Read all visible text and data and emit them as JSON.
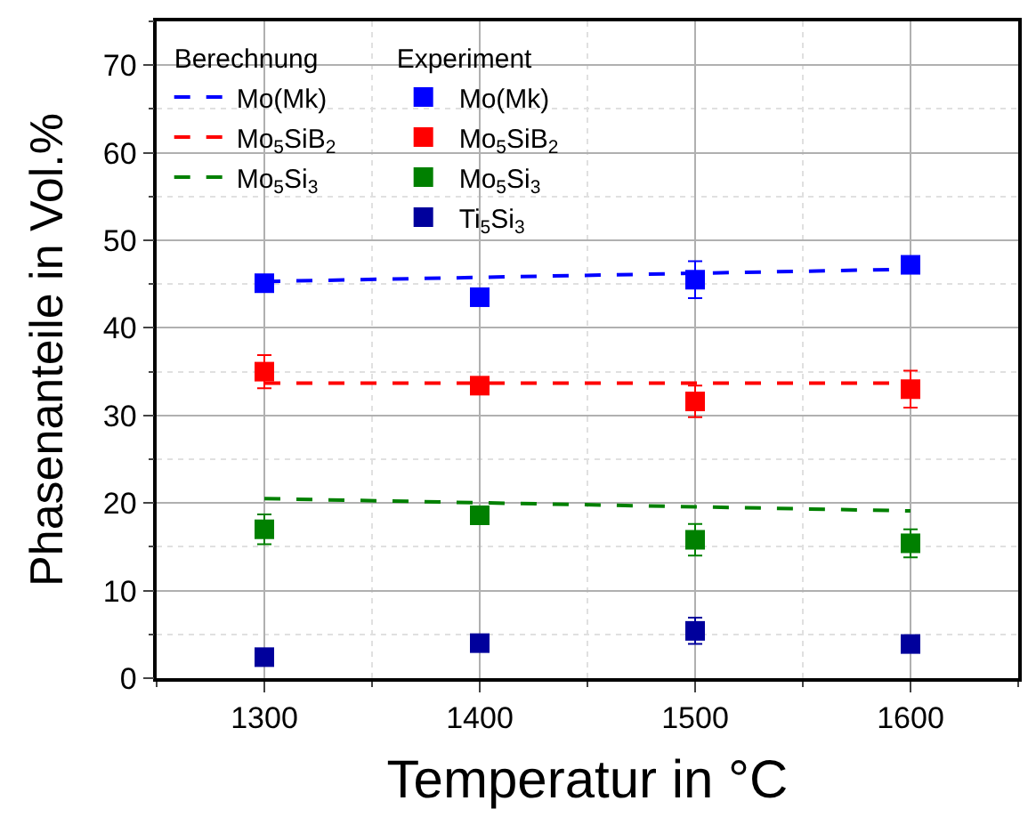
{
  "chart_data": {
    "type": "scatter",
    "xlabel": "Temperatur in °C",
    "ylabel": "Phasenanteile in Vol.%",
    "annotations": [
      "Berechnung",
      "Experiment"
    ],
    "xlim": [
      1250,
      1650
    ],
    "xticks": [
      1300,
      1400,
      1500,
      1600
    ],
    "ylim": [
      0,
      75
    ],
    "yticks": [
      0,
      10,
      20,
      30,
      40,
      50,
      60,
      70
    ],
    "grid": true,
    "legend": "top left",
    "marker": "square",
    "series": [
      {
        "type": "line",
        "marker": "none",
        "line_style": "dashed",
        "name": "Mo(Mk)",
        "color": "#0000ff",
        "x": [
          1300,
          1600
        ],
        "values": [
          45.3,
          46.7
        ]
      },
      {
        "type": "line",
        "marker": "none",
        "line_style": "dashed",
        "name": "Mo$_{5}$SiB$_{2}$",
        "color": "#ff0000",
        "x": [
          1300,
          1600
        ],
        "values": [
          33.7,
          33.7
        ]
      },
      {
        "type": "line",
        "marker": "none",
        "line_style": "dashed",
        "name": "Mo$_{5}$Si$_{3}$",
        "color": "#008000",
        "x": [
          1300,
          1600
        ],
        "values": [
          20.5,
          19.1
        ]
      },
      {
        "name": "Mo(Mk)",
        "color": "#0000ff",
        "x": [
          1300,
          1400,
          1500,
          1600
        ],
        "values": [
          45.1,
          43.5,
          45.5,
          47.2
        ],
        "errors": [
          null,
          null,
          2.1,
          null
        ]
      },
      {
        "name": "Mo$_{5}$SiB$_{2}$",
        "color": "#ff0000",
        "x": [
          1300,
          1400,
          1500,
          1600
        ],
        "values": [
          35.0,
          33.4,
          31.6,
          33.0
        ],
        "errors": [
          1.9,
          null,
          1.8,
          2.1
        ]
      },
      {
        "name": "Mo$_{5}$Si$_{3}$",
        "color": "#008000",
        "x": [
          1300,
          1400,
          1500,
          1600
        ],
        "values": [
          17.0,
          18.6,
          15.8,
          15.4
        ],
        "errors": [
          1.7,
          null,
          1.8,
          1.6
        ]
      },
      {
        "name": "Ti$_{5}$Si$_{3}$",
        "color": "#00009c",
        "x": [
          1300,
          1400,
          1500,
          1600
        ],
        "values": [
          2.4,
          4.0,
          5.4,
          3.9
        ],
        "errors": [
          null,
          null,
          1.5,
          null
        ]
      }
    ]
  }
}
